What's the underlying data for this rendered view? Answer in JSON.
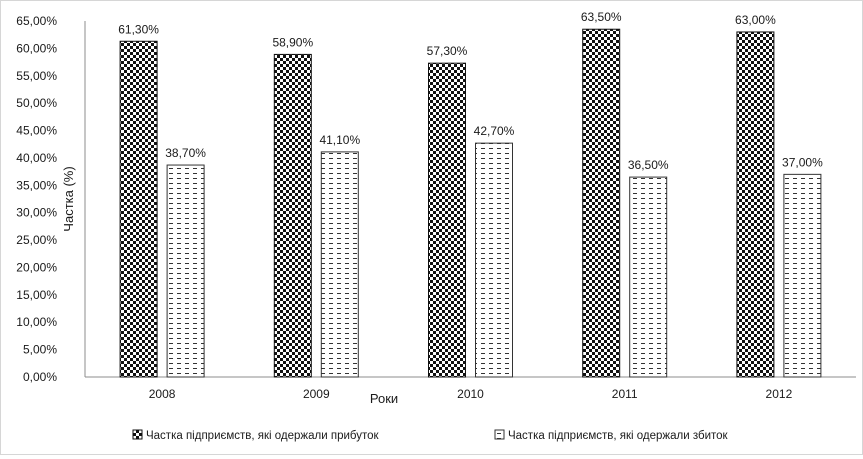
{
  "chart_data": {
    "type": "bar",
    "xlabel": "Роки",
    "ylabel": "Частка (%)",
    "ylim": [
      0,
      65
    ],
    "yticks": [
      "0,00%",
      "5,00%",
      "10,00%",
      "15,00%",
      "20,00%",
      "25,00%",
      "30,00%",
      "35,00%",
      "40,00%",
      "45,00%",
      "50,00%",
      "55,00%",
      "60,00%",
      "65,00%"
    ],
    "categories": [
      "2008",
      "2009",
      "2010",
      "2011",
      "2012"
    ],
    "series": [
      {
        "name": "Частка підприємств, які одержали прибуток",
        "values": [
          61.3,
          58.9,
          57.3,
          63.5,
          63.0
        ],
        "labels": [
          "61,30%",
          "58,90%",
          "57,30%",
          "63,50%",
          "63,00%"
        ],
        "pattern": "checker"
      },
      {
        "name": "Частка підприємств, які одержали збиток",
        "values": [
          38.7,
          41.1,
          42.7,
          36.5,
          37.0
        ],
        "labels": [
          "38,70%",
          "41,10%",
          "42,70%",
          "36,50%",
          "37,00%"
        ],
        "pattern": "dashes"
      }
    ],
    "legend_position": "bottom",
    "grid": false
  }
}
